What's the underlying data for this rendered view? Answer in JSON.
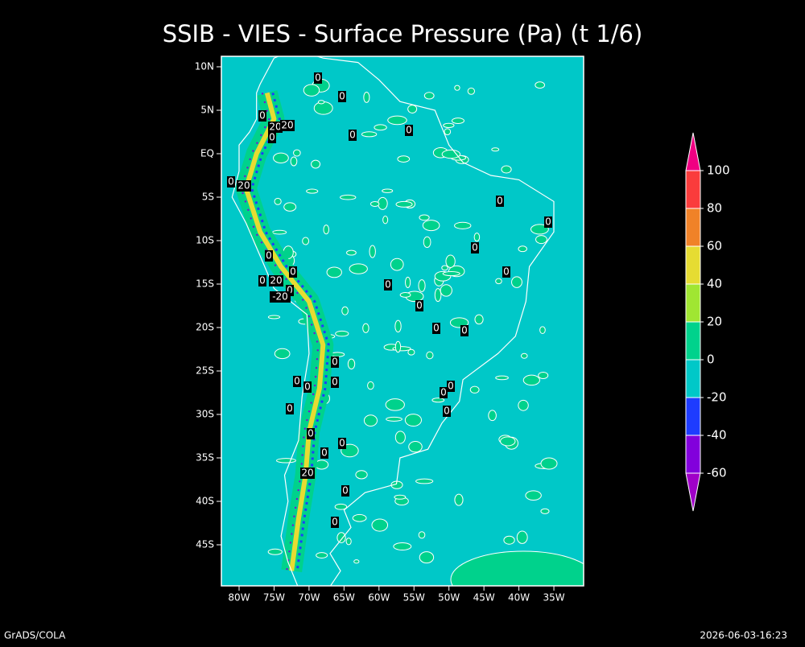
{
  "title": "SSIB - VIES - Surface Pressure (Pa) (t 1/6)",
  "map": {
    "lat_labels": [
      "10N",
      "5N",
      "EQ",
      "5S",
      "10S",
      "15S",
      "20S",
      "25S",
      "30S",
      "35S",
      "40S",
      "45S"
    ],
    "lon_labels": [
      "80W",
      "75W",
      "70W",
      "65W",
      "60W",
      "55W",
      "50W",
      "45W",
      "40W",
      "35W"
    ],
    "contour_labels": [
      "0",
      "0",
      "0",
      "20",
      "20",
      "0",
      "0",
      "0",
      "0",
      "20",
      "0",
      "0",
      "0",
      "0",
      "0",
      "0",
      "0",
      "20",
      "0",
      "-20",
      "0",
      "0",
      "0",
      "0",
      "0",
      "0",
      "0",
      "0",
      "0",
      "0",
      "0",
      "0",
      "0",
      "0",
      "0",
      "20",
      "0",
      "0"
    ]
  },
  "colorbar": {
    "levels": [
      -60,
      -40,
      -20,
      0,
      20,
      40,
      60,
      80,
      100
    ],
    "colors": [
      "#a000c8",
      "#8200dc",
      "#1e3cff",
      "#00c8c8",
      "#00d28c",
      "#a0e632",
      "#e6dc32",
      "#f08228",
      "#fa3c3c",
      "#f00082"
    ]
  },
  "footer": {
    "left": "GrADS/COLA",
    "right": "2026-06-03-16:23"
  }
}
